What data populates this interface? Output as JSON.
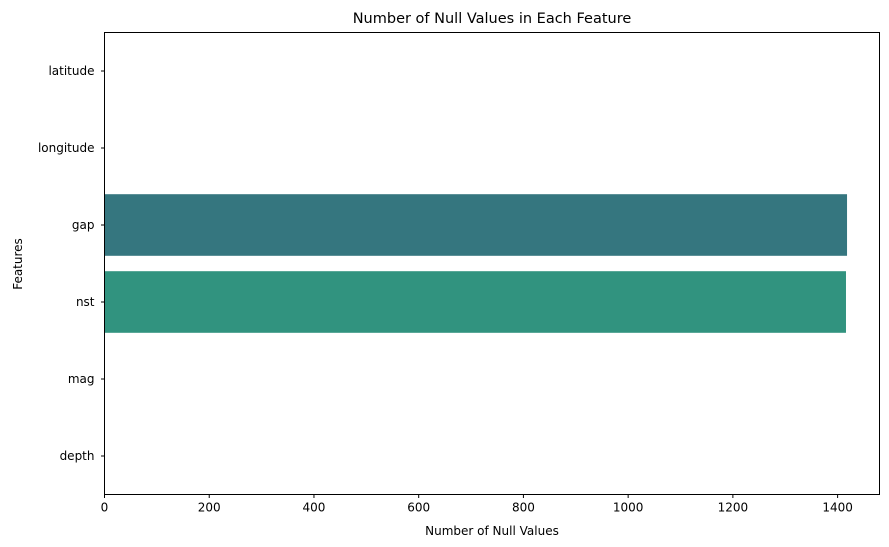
{
  "chart_data": {
    "type": "bar",
    "orientation": "horizontal",
    "title": "Number of Null Values in Each Feature",
    "xlabel": "Number of Null Values",
    "ylabel": "Features",
    "categories": [
      "latitude",
      "longitude",
      "gap",
      "nst",
      "mag",
      "depth"
    ],
    "values": [
      0,
      0,
      1418,
      1416,
      0,
      0
    ],
    "colors": [
      "#440154",
      "#414487",
      "#35767f",
      "#31937f",
      "#55c16a",
      "#b8de29"
    ],
    "xlim": [
      0,
      1480
    ],
    "xticks": [
      0,
      200,
      400,
      600,
      800,
      1000,
      1200,
      1400
    ],
    "xtick_labels": [
      "0",
      "200",
      "400",
      "600",
      "800",
      "1000",
      "1200",
      "1400"
    ],
    "grid": false,
    "legend": "none"
  }
}
